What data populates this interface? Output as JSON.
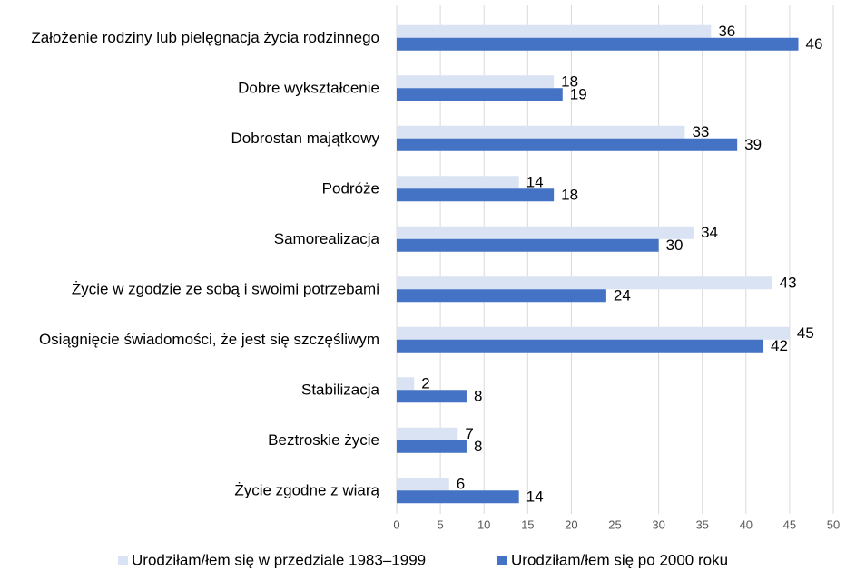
{
  "chart_data": {
    "type": "bar",
    "orientation": "horizontal",
    "categories": [
      "Założenie rodziny lub pielęgnacja życia rodzinnego",
      "Dobre wykształcenie",
      "Dobrostan majątkowy",
      "Podróże",
      "Samorealizacja",
      "Życie w zgodzie ze sobą i swoimi potrzebami",
      "Osiągnięcie świadomości, że jest się szczęśliwym",
      "Stabilizacja",
      "Beztroskie życie",
      "Życie zgodne z wiarą"
    ],
    "series": [
      {
        "name": "Urodziłam/łem się w przedziale 1983–1999",
        "color": "#dae3f3",
        "values": [
          36,
          18,
          33,
          14,
          34,
          43,
          45,
          2,
          7,
          6
        ]
      },
      {
        "name": "Urodziłam/łem się po 2000 roku",
        "color": "#4472c4",
        "values": [
          46,
          19,
          39,
          18,
          30,
          24,
          42,
          8,
          8,
          14
        ]
      }
    ],
    "xlim": [
      0,
      50
    ],
    "xticks": [
      0,
      5,
      10,
      15,
      20,
      25,
      30,
      35,
      40,
      45,
      50
    ],
    "grid": true,
    "legend": "bottom"
  }
}
